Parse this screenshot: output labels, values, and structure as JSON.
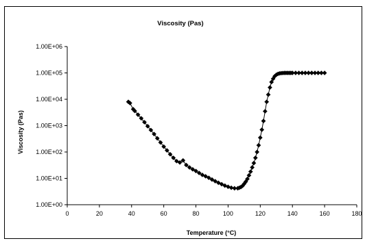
{
  "chart_data": {
    "type": "line",
    "title": "Viscosity (Pas)",
    "xlabel": "Temperature (°C)",
    "ylabel": "Viscosity (Pas)",
    "xlim": [
      0,
      180
    ],
    "xticks": [
      0,
      20,
      40,
      60,
      80,
      100,
      120,
      140,
      160,
      180
    ],
    "ylim": [
      1,
      1000000
    ],
    "yscale": "log",
    "ytick_labels": [
      "1.00E+00",
      "1.00E+01",
      "1.00E+02",
      "1.00E+03",
      "1.00E+04",
      "1.00E+05",
      "1.00E+06"
    ],
    "grid": false,
    "legend": "none",
    "marker": "diamond",
    "series": [
      {
        "color": "#000000",
        "x": [
          38,
          39,
          41,
          42,
          44,
          46,
          48,
          50,
          52,
          54,
          56,
          58,
          60,
          62,
          64,
          66,
          68,
          70,
          72,
          74,
          76,
          78,
          80,
          82,
          84,
          86,
          88,
          90,
          92,
          94,
          96,
          98,
          100,
          102,
          104,
          106,
          107,
          108,
          109,
          110,
          111,
          112,
          113,
          114,
          115,
          116,
          117,
          118,
          119,
          120,
          121,
          122,
          123,
          124,
          125,
          126,
          127,
          128,
          129,
          130,
          131,
          132,
          133,
          134,
          135,
          136,
          137,
          138,
          139,
          140,
          142,
          144,
          146,
          148,
          150,
          152,
          154,
          156,
          158,
          160
        ],
        "y": [
          8000,
          7200,
          4200,
          3600,
          2600,
          1900,
          1350,
          950,
          680,
          480,
          330,
          230,
          160,
          115,
          82,
          60,
          45,
          40,
          48,
          32,
          26,
          22,
          19,
          16,
          13.5,
          12,
          10.5,
          9,
          7.8,
          6.8,
          6,
          5.3,
          4.8,
          4.4,
          4.2,
          4.2,
          4.4,
          4.7,
          5.2,
          6.2,
          7.5,
          9.5,
          13,
          18,
          26,
          38,
          60,
          100,
          180,
          350,
          700,
          1500,
          3500,
          8000,
          15000,
          28000,
          45000,
          60000,
          75000,
          85000,
          92000,
          96000,
          98000,
          99000,
          100000,
          100000,
          100000,
          100000,
          100000,
          100000,
          100000,
          100000,
          100000,
          100000,
          100000,
          100000,
          100000,
          100000,
          100000,
          100000
        ]
      }
    ]
  }
}
